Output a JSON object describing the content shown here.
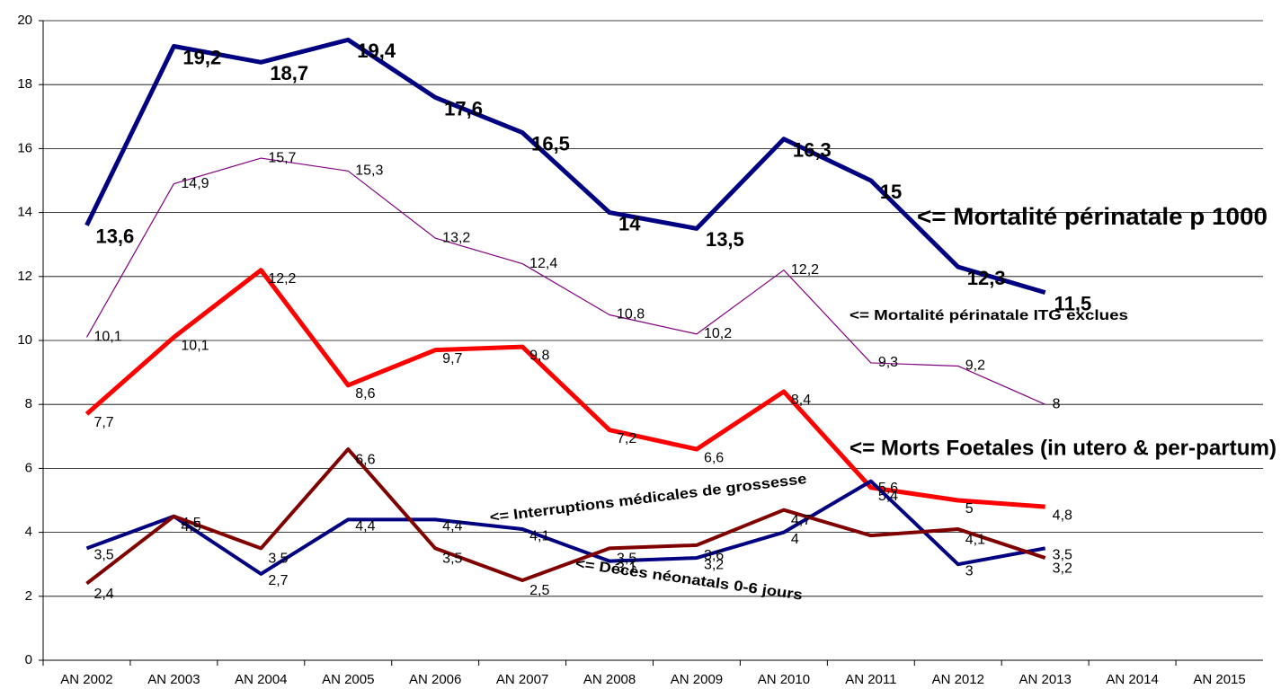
{
  "chart_data": {
    "type": "line",
    "categories": [
      "AN 2002",
      "AN 2003",
      "AN 2004",
      "AN 2005",
      "AN 2006",
      "AN 2007",
      "AN 2008",
      "AN 2009",
      "AN 2010",
      "AN 2011",
      "AN 2012",
      "AN 2013",
      "AN 2014",
      "AN 2015"
    ],
    "ylim": [
      0,
      20
    ],
    "yticks": [
      0,
      2,
      4,
      6,
      8,
      10,
      12,
      14,
      16,
      18,
      20
    ],
    "grid": true,
    "series": [
      {
        "name": "<= Mortalité périnatale p 1000",
        "color": "#000080",
        "values": [
          13.6,
          19.2,
          18.7,
          19.4,
          17.6,
          16.5,
          14,
          13.5,
          16.3,
          15,
          12.3,
          11.5,
          null,
          null
        ],
        "value_labels": [
          "13,6",
          "19,2",
          "18,7",
          "19,4",
          "17,6",
          "16,5",
          "14",
          "13,5",
          "16,3",
          "15",
          "12,3",
          "11,5",
          null,
          null
        ]
      },
      {
        "name": "<= Mortalité périnatale ITG exclues",
        "color": "#800080",
        "values": [
          10.1,
          14.9,
          15.7,
          15.3,
          13.2,
          12.4,
          10.8,
          10.2,
          12.2,
          9.3,
          9.2,
          8,
          null,
          null
        ],
        "value_labels": [
          "10,1",
          "14,9",
          "15,7",
          "15,3",
          "13,2",
          "12,4",
          "10,8",
          "10,2",
          "12,2",
          "9,3",
          "9,2",
          "8",
          null,
          null
        ]
      },
      {
        "name": "<= Morts Foetales (in utero & per-partum)",
        "color": "#ff0000",
        "values": [
          7.7,
          10.1,
          12.2,
          8.6,
          9.7,
          9.8,
          7.2,
          6.6,
          8.4,
          5.4,
          5,
          4.8,
          null,
          null
        ],
        "value_labels": [
          "7,7",
          "10,1",
          "12,2",
          "8,6",
          "9,7",
          "9,8",
          "7,2",
          "6,6",
          "8,4",
          "5,4",
          "5",
          "4,8",
          null,
          null
        ]
      },
      {
        "name": "<= Interruptions médicales de grossesse",
        "color": "#000080",
        "values": [
          3.5,
          4.5,
          2.7,
          4.4,
          4.4,
          4.1,
          3.1,
          3.2,
          4,
          5.6,
          3,
          3.5,
          null,
          null
        ],
        "value_labels": [
          "3,5",
          "4,5",
          "2,7",
          "4,4",
          "4,4",
          "4,1",
          "3,1",
          "3,2",
          "4",
          "5,6",
          "3",
          "3,5",
          null,
          null
        ]
      },
      {
        "name": "<= Décès néonatals 0-6 jours",
        "color": "#800000",
        "values": [
          2.4,
          4.5,
          3.5,
          6.6,
          3.5,
          2.5,
          3.5,
          3.6,
          4.7,
          3.9,
          4.1,
          3.2,
          null,
          null
        ],
        "value_labels": [
          "2,4",
          "4,5",
          "3,5",
          "6,6",
          "3,5",
          "2,5",
          "3,5",
          "3,6",
          "4,7",
          null,
          "4,1",
          "3,2",
          null,
          null
        ]
      }
    ]
  }
}
